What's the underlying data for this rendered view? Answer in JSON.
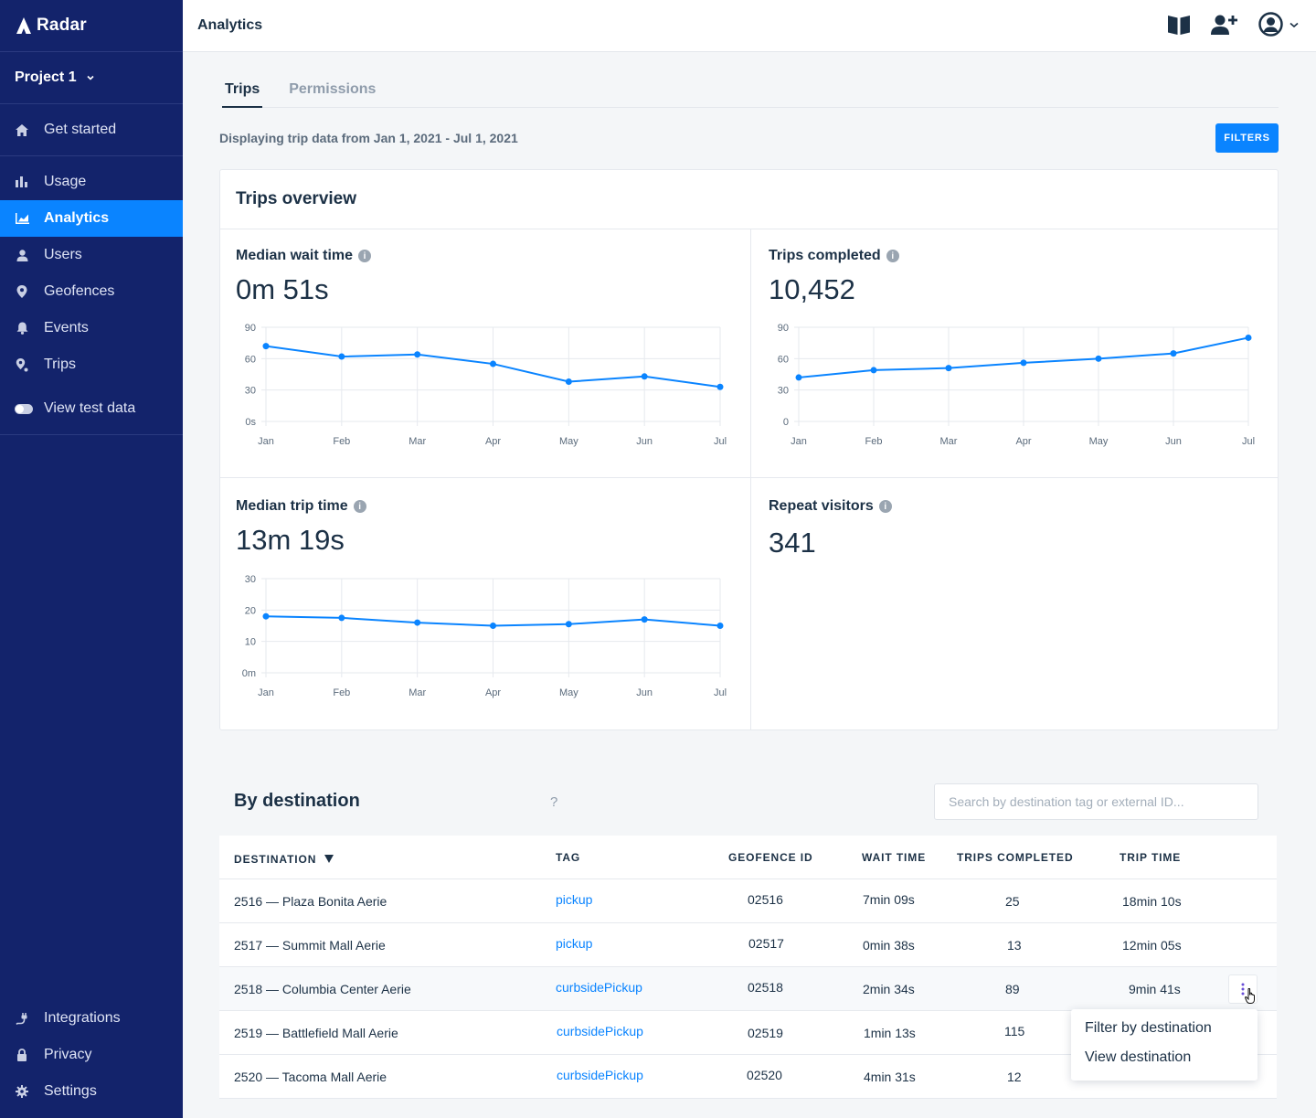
{
  "brand": {
    "name": "Radar"
  },
  "project": {
    "name": "Project 1"
  },
  "sidebar": {
    "top": [
      {
        "label": "Get started",
        "icon": "home-icon"
      }
    ],
    "main": [
      {
        "label": "Usage",
        "icon": "bar-chart-icon"
      },
      {
        "label": "Analytics",
        "icon": "area-chart-icon",
        "active": true
      },
      {
        "label": "Users",
        "icon": "user-icon"
      },
      {
        "label": "Geofences",
        "icon": "geofence-pin-icon"
      },
      {
        "label": "Events",
        "icon": "bell-icon"
      },
      {
        "label": "Trips",
        "icon": "trip-pin-icon"
      }
    ],
    "test_data": {
      "label": "View test data"
    },
    "bottom": [
      {
        "label": "Integrations",
        "icon": "plug-icon"
      },
      {
        "label": "Privacy",
        "icon": "lock-icon"
      },
      {
        "label": "Settings",
        "icon": "gear-icon"
      }
    ]
  },
  "topbar": {
    "title": "Analytics"
  },
  "tabs": [
    {
      "label": "Trips",
      "active": true
    },
    {
      "label": "Permissions"
    }
  ],
  "date_range": "Displaying trip data from Jan 1, 2021 - Jul 1, 2021",
  "filters_label": "FILTERS",
  "overview": {
    "title": "Trips overview",
    "metrics": {
      "wait": {
        "label": "Median wait time",
        "value": "0m 51s"
      },
      "completed": {
        "label": "Trips completed",
        "value": "10,452"
      },
      "trip": {
        "label": "Median trip time",
        "value": "13m 19s"
      },
      "repeat": {
        "label": "Repeat visitors",
        "value": "341"
      }
    }
  },
  "chart_data": [
    {
      "type": "line",
      "title": "Median wait time",
      "categories": [
        "Jan",
        "Feb",
        "Mar",
        "Apr",
        "May",
        "Jun",
        "Jul"
      ],
      "values": [
        72,
        62,
        64,
        55,
        38,
        43,
        33
      ],
      "yticks": [
        "0s",
        "30",
        "60",
        "90"
      ],
      "ylim": [
        0,
        90
      ],
      "color": "#0a84ff"
    },
    {
      "type": "line",
      "title": "Trips completed",
      "categories": [
        "Jan",
        "Feb",
        "Mar",
        "Apr",
        "May",
        "Jun",
        "Jul"
      ],
      "values": [
        42,
        49,
        51,
        56,
        60,
        65,
        80
      ],
      "yticks": [
        "0",
        "30",
        "60",
        "90"
      ],
      "ylim": [
        0,
        90
      ],
      "color": "#0a84ff"
    },
    {
      "type": "line",
      "title": "Median trip time",
      "categories": [
        "Jan",
        "Feb",
        "Mar",
        "Apr",
        "May",
        "Jun",
        "Jul"
      ],
      "values": [
        18,
        17.5,
        16,
        15,
        15.5,
        17,
        15
      ],
      "yticks": [
        "0m",
        "10",
        "20",
        "30"
      ],
      "ylim": [
        0,
        30
      ],
      "color": "#0a84ff"
    }
  ],
  "destination": {
    "title": "By destination",
    "help": "?",
    "search_placeholder": "Search by destination tag or external ID...",
    "columns": [
      "DESTINATION",
      "TAG",
      "GEOFENCE ID",
      "WAIT TIME",
      "TRIPS COMPLETED",
      "TRIP TIME"
    ],
    "rows": [
      {
        "destination": "2516 — Plaza Bonita Aerie",
        "tag": "pickup",
        "geofence_id": "02516",
        "wait_time": "7min 09s",
        "trips_completed": "25",
        "trip_time": "18min 10s"
      },
      {
        "destination": "2517 — Summit Mall Aerie",
        "tag": "pickup",
        "geofence_id": "02517",
        "wait_time": "0min 38s",
        "trips_completed": "13",
        "trip_time": "12min 05s"
      },
      {
        "destination": "2518 — Columbia Center Aerie",
        "tag": "curbsidePickup",
        "geofence_id": "02518",
        "wait_time": "2min 34s",
        "trips_completed": "89",
        "trip_time": "9min 41s"
      },
      {
        "destination": "2519 — Battlefield Mall Aerie",
        "tag": "curbsidePickup",
        "geofence_id": "02519",
        "wait_time": "1min 13s",
        "trips_completed": "115",
        "trip_time": ""
      },
      {
        "destination": "2520 — Tacoma Mall Aerie",
        "tag": "curbsidePickup",
        "geofence_id": "02520",
        "wait_time": "4min 31s",
        "trips_completed": "12",
        "trip_time": ""
      }
    ],
    "row_menu": {
      "items": [
        "Filter by destination",
        "View destination"
      ]
    }
  }
}
